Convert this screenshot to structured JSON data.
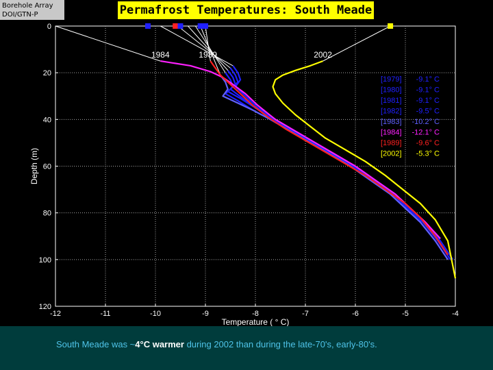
{
  "badge": {
    "line1": "Borehole Array",
    "line2": "DOI/GTN-P"
  },
  "title": "Permafrost Temperatures:  South Meade",
  "footer": {
    "prefix": "South Meade was ~",
    "emphasis": "4°C warmer",
    "suffix": " during 2002 than during the late-70's, early-80's."
  },
  "chart_data": {
    "type": "line",
    "title": "Permafrost Temperatures:  South Meade",
    "xlabel": "Temperature ( ° C)",
    "ylabel": "Depth (m)",
    "xlim": [
      -12,
      -4
    ],
    "ylim": [
      0,
      120
    ],
    "y_inverted": true,
    "grid": true,
    "xticks": [
      -12,
      -11,
      -10,
      -9,
      -8,
      -7,
      -6,
      -5,
      -4
    ],
    "yticks": [
      0,
      20,
      40,
      60,
      80,
      100,
      120
    ],
    "legend_position": "right",
    "series": [
      {
        "name": "[1979]",
        "surface_temp": "-9.1° C",
        "color": "#2020ff",
        "x": [
          -8.45,
          -8.35,
          -8.3,
          -8.4,
          -8.2,
          -7.95,
          -7.6,
          -7.2,
          -6.8,
          -6.4,
          -6.0,
          -5.6,
          -5.2,
          -4.9,
          -4.6,
          -4.3,
          -4.05
        ],
        "y": [
          17,
          20,
          23,
          26,
          30,
          35,
          40,
          45,
          50,
          55,
          60,
          66,
          72,
          78,
          84,
          92,
          100
        ]
      },
      {
        "name": "[1980]",
        "surface_temp": "-9.1° C",
        "color": "#2020ff",
        "x": [
          -8.5,
          -8.4,
          -8.35,
          -8.5,
          -8.25,
          -8.0,
          -7.65,
          -7.25,
          -6.85,
          -6.45,
          -6.05,
          -5.65,
          -5.25,
          -4.95,
          -4.65,
          -4.35,
          -4.1
        ],
        "y": [
          18,
          21,
          24,
          27,
          31,
          35,
          40,
          45,
          50,
          55,
          60,
          66,
          72,
          78,
          84,
          92,
          100
        ]
      },
      {
        "name": "[1981]",
        "surface_temp": "-9.1° C",
        "color": "#2020ff",
        "x": [
          -8.55,
          -8.45,
          -8.4,
          -8.55,
          -8.3,
          -8.0,
          -7.65,
          -7.25,
          -6.85,
          -6.45,
          -6.05,
          -5.65,
          -5.25,
          -4.95,
          -4.65,
          -4.35,
          -4.1
        ],
        "y": [
          19,
          22,
          25,
          28,
          31,
          35,
          40,
          45,
          50,
          55,
          60,
          66,
          72,
          78,
          84,
          92,
          100
        ]
      },
      {
        "name": "[1982]",
        "surface_temp": "-9.5° C",
        "color": "#2020ff",
        "x": [
          -8.6,
          -8.5,
          -8.45,
          -8.6,
          -8.35,
          -8.05,
          -7.7,
          -7.3,
          -6.9,
          -6.5,
          -6.1,
          -5.7,
          -5.3,
          -5.0,
          -4.7,
          -4.4,
          -4.15
        ],
        "y": [
          20,
          23,
          26,
          29,
          32,
          36,
          40,
          45,
          50,
          55,
          60,
          66,
          72,
          78,
          84,
          92,
          100
        ]
      },
      {
        "name": "[1983]",
        "surface_temp": "-10.2° C",
        "color": "#6060ff",
        "x": [
          -8.7,
          -8.6,
          -8.55,
          -8.65,
          -8.35,
          -8.05,
          -7.7,
          -7.3,
          -6.9,
          -6.5,
          -6.1,
          -5.7,
          -5.3,
          -5.0,
          -4.7,
          -4.4,
          -4.15
        ],
        "y": [
          21,
          24,
          27,
          30,
          33,
          36,
          40,
          45,
          50,
          55,
          60,
          66,
          72,
          78,
          84,
          92,
          100
        ]
      },
      {
        "name": "[1984]",
        "surface_temp": "-12.1° C",
        "color": "#ff20ff",
        "x": [
          -9.9,
          -9.3,
          -8.9,
          -8.65,
          -8.45,
          -8.2,
          -7.95,
          -7.6,
          -7.2,
          -6.8,
          -6.4,
          -6.0,
          -5.6,
          -5.2,
          -4.9,
          -4.6,
          -4.3
        ],
        "y": [
          15,
          17,
          19.5,
          22,
          25,
          29,
          34,
          40,
          45,
          50,
          55,
          60,
          66,
          72,
          78,
          84,
          91
        ]
      },
      {
        "name": "[1989]",
        "surface_temp": "-9.6° C",
        "color": "#ff2020",
        "x": [
          -8.9,
          -8.8,
          -8.7,
          -8.5,
          -8.3,
          -8.05,
          -7.75,
          -7.4,
          -7.0,
          -6.6,
          -6.2,
          -5.8,
          -5.4,
          -5.0,
          -4.7,
          -4.4,
          -4.15
        ],
        "y": [
          15,
          18,
          21,
          25,
          29,
          34,
          39,
          44,
          49,
          54,
          59,
          64,
          70,
          76,
          82,
          90,
          98
        ]
      },
      {
        "name": "[2002]",
        "surface_temp": "-5.3° C",
        "color": "#ffff00",
        "x": [
          -6.65,
          -6.9,
          -7.2,
          -7.45,
          -7.6,
          -7.65,
          -7.6,
          -7.45,
          -7.2,
          -6.9,
          -6.6,
          -6.2,
          -5.8,
          -5.4,
          -5.05,
          -4.7,
          -4.4,
          -4.15,
          -4.0
        ],
        "y": [
          15,
          17,
          19,
          21,
          23,
          26,
          29,
          33,
          38,
          43,
          48,
          53,
          58,
          64,
          70,
          76,
          83,
          92,
          108
        ]
      }
    ],
    "annotations": [
      {
        "text": "1984",
        "x": -9.9,
        "y": 13.5
      },
      {
        "text": "1989",
        "x": -8.95,
        "y": 13.5
      },
      {
        "text": "2002",
        "x": -6.65,
        "y": 13.5
      }
    ],
    "surface_markers": [
      {
        "x": -10.15,
        "color": "#2020ff"
      },
      {
        "x": -9.6,
        "color": "#ff2020"
      },
      {
        "x": -9.5,
        "color": "#2020ff"
      },
      {
        "x": -9.1,
        "color": "#2020ff"
      },
      {
        "x": -9.0,
        "color": "#2020ff"
      },
      {
        "x": -5.3,
        "color": "#ffff00"
      }
    ],
    "surface_leaders": [
      {
        "from_x": -12.0,
        "to_x": -9.9,
        "to_y": 15
      },
      {
        "from_x": -9.9,
        "to_x": -8.45,
        "to_y": 17
      },
      {
        "from_x": -9.55,
        "to_x": -8.5,
        "to_y": 18
      },
      {
        "from_x": -9.35,
        "to_x": -8.55,
        "to_y": 19
      },
      {
        "from_x": -9.2,
        "to_x": -8.6,
        "to_y": 20
      },
      {
        "from_x": -9.1,
        "to_x": -8.7,
        "to_y": 21
      },
      {
        "from_x": -9.0,
        "to_x": -8.9,
        "to_y": 15
      },
      {
        "from_x": -5.3,
        "to_x": -6.65,
        "to_y": 15
      }
    ]
  }
}
